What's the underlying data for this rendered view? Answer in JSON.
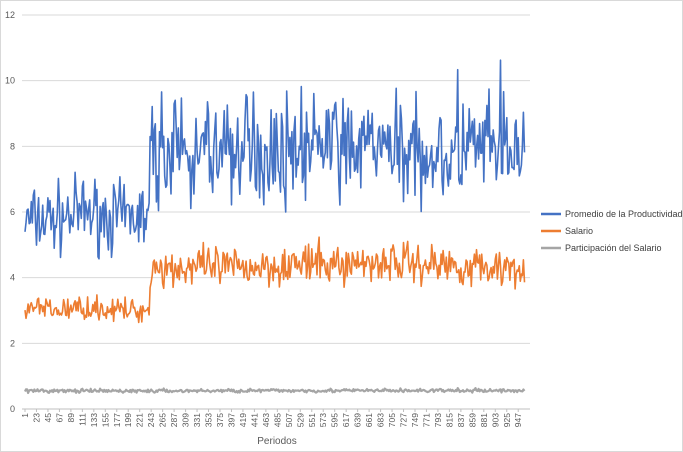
{
  "chart_data": {
    "type": "line",
    "title": "",
    "xlabel": "Periodos",
    "ylabel": "",
    "ylim": [
      0,
      12
    ],
    "yticks": [
      0,
      2,
      4,
      6,
      8,
      10,
      12
    ],
    "grid": true,
    "legend_position": "right",
    "x_range": [
      1,
      960
    ],
    "xtick_labels": [
      "1",
      "23",
      "45",
      "67",
      "89",
      "111",
      "133",
      "155",
      "177",
      "199",
      "221",
      "243",
      "265",
      "287",
      "309",
      "331",
      "353",
      "375",
      "397",
      "419",
      "441",
      "463",
      "485",
      "507",
      "529",
      "551",
      "573",
      "595",
      "617",
      "639",
      "661",
      "683",
      "705",
      "727",
      "749",
      "771",
      "793",
      "815",
      "837",
      "859",
      "881",
      "903",
      "925",
      "947"
    ],
    "series": [
      {
        "name": "Promedio de la Productividad",
        "color": "#4472C4",
        "description_values": "noisy series",
        "periods": [
          1,
          60,
          120,
          180,
          240,
          241,
          300,
          400,
          500,
          600,
          700,
          800,
          900,
          960
        ],
        "values": [
          5.7,
          5.8,
          6.0,
          5.8,
          5.9,
          7.8,
          7.9,
          7.8,
          7.9,
          8.0,
          7.9,
          7.8,
          7.9,
          7.8
        ]
      },
      {
        "name": "Salario",
        "color": "#ED7D31",
        "periods": [
          1,
          60,
          120,
          180,
          240,
          241,
          300,
          400,
          500,
          600,
          700,
          800,
          900,
          960
        ],
        "values": [
          3.1,
          3.0,
          3.1,
          3.0,
          3.0,
          4.3,
          4.3,
          4.3,
          4.4,
          4.4,
          4.5,
          4.4,
          4.3,
          4.4
        ]
      },
      {
        "name": "Participación del Salario",
        "color": "#A5A5A5",
        "periods": [
          1,
          240,
          480,
          720,
          960
        ],
        "values": [
          0.55,
          0.55,
          0.56,
          0.56,
          0.56
        ]
      }
    ]
  }
}
